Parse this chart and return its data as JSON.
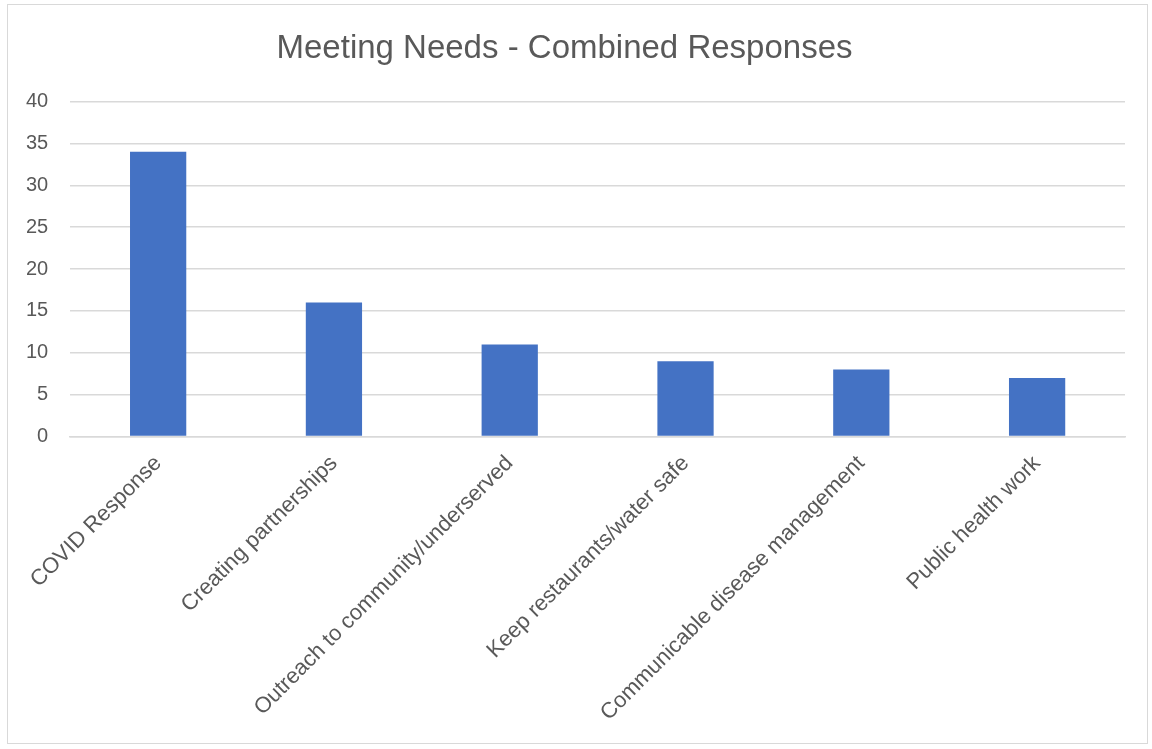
{
  "chart_data": {
    "type": "bar",
    "title": "Meeting Needs - Combined Responses",
    "categories": [
      "COVID Response",
      "Creating partnerships",
      "Outreach to community/underserved",
      "Keep restaurants/water safe",
      "Communicable disease management",
      "Public health work"
    ],
    "values": [
      34,
      16,
      11,
      9,
      8,
      7
    ],
    "color": "#4472c4",
    "ylim": [
      0,
      40
    ],
    "yticks": [
      0,
      5,
      10,
      15,
      20,
      25,
      30,
      35,
      40
    ],
    "grid": "y"
  }
}
